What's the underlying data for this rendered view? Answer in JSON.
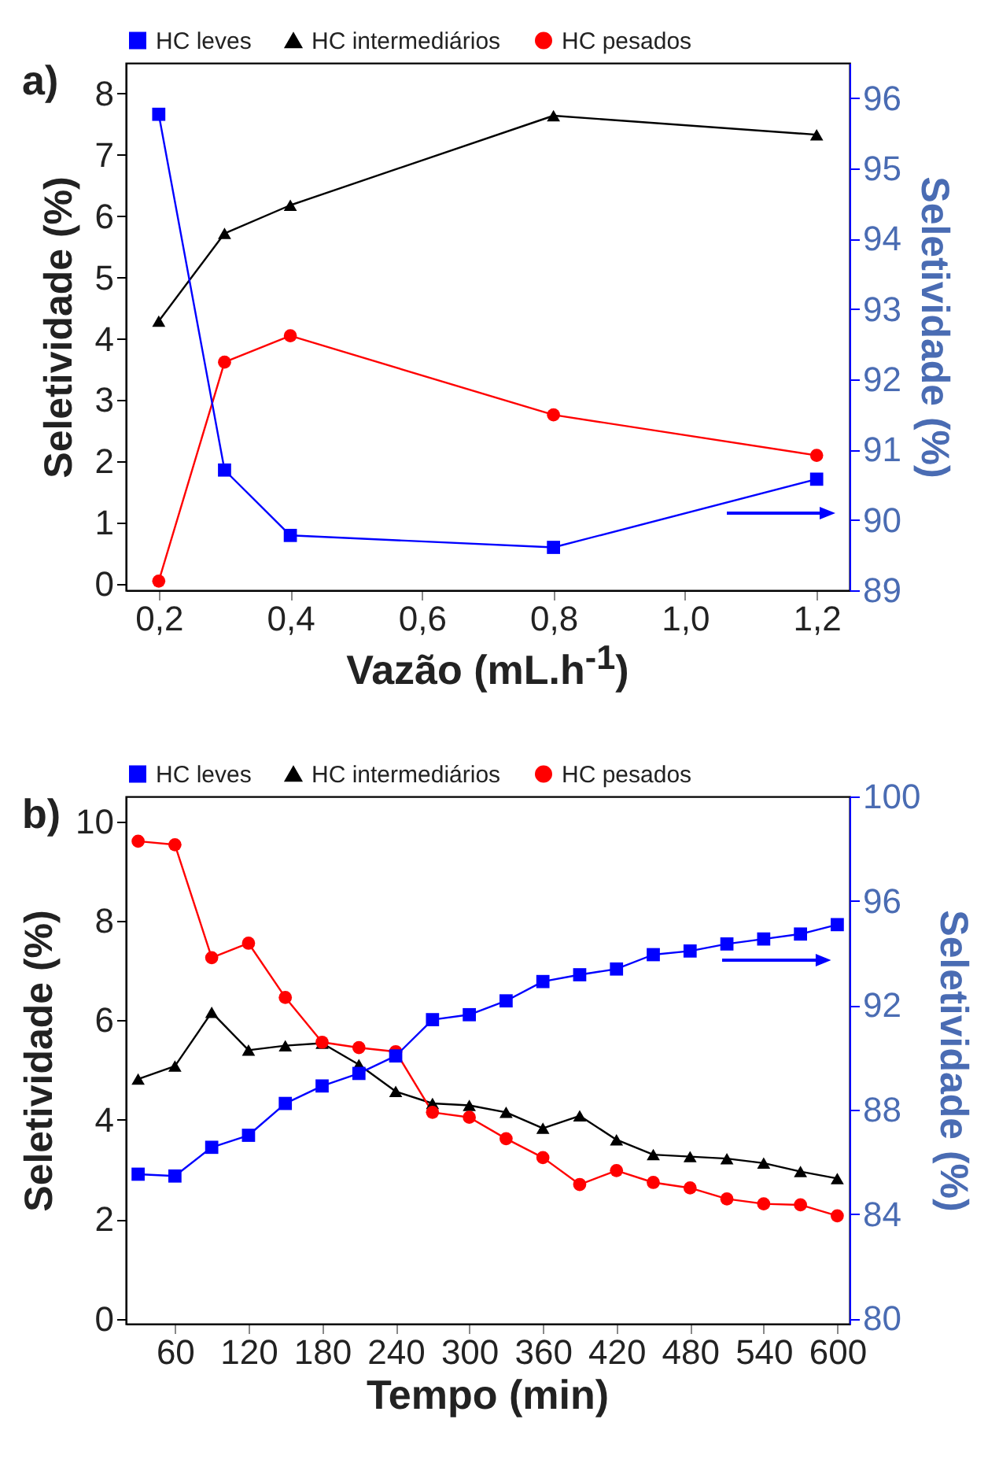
{
  "chart_data": [
    {
      "type": "line",
      "xlabel": "Vazão (mL.h$^{-1}$)",
      "ylabel": "Seletividade (%)",
      "y2label": "Seletividade (%)",
      "annotations": [
        "a)"
      ],
      "legend": "top",
      "x": [
        0.2,
        0.3,
        0.4,
        0.8,
        1.2
      ],
      "xlim": [
        0.15,
        1.25
      ],
      "xticks": [
        {
          "value": 0.2,
          "label": "0,2"
        },
        {
          "value": 0.4,
          "label": "0,4"
        },
        {
          "value": 0.6,
          "label": "0,6"
        },
        {
          "value": 0.8,
          "label": "0,8"
        },
        {
          "value": 1.0,
          "label": "1,0"
        },
        {
          "value": 1.2,
          "label": "1,2"
        }
      ],
      "ylim": [
        -0.1,
        8.5
      ],
      "yticks": [
        0,
        1,
        2,
        3,
        4,
        5,
        6,
        7,
        8
      ],
      "y2lim": [
        89,
        96.5
      ],
      "y2ticks": [
        89,
        90,
        91,
        92,
        93,
        94,
        95,
        96
      ],
      "series": [
        {
          "name": "HC leves",
          "color": "#0000ff",
          "marker": "square",
          "axis": "y2",
          "values": [
            95.77,
            90.71,
            89.78,
            89.61,
            90.58
          ]
        },
        {
          "name": "HC intermediários",
          "color": "#000000",
          "marker": "triangle",
          "values": [
            4.29,
            5.72,
            6.18,
            7.64,
            7.33
          ]
        },
        {
          "name": "HC pesados",
          "color": "#ff0000",
          "marker": "circle",
          "values": [
            0.05,
            3.62,
            4.05,
            2.76,
            2.1
          ]
        }
      ]
    },
    {
      "type": "line",
      "xlabel": "Tempo (min)",
      "ylabel": "Seletividade (%)",
      "y2label": "Seletividade (%)",
      "annotations": [
        "b)"
      ],
      "legend": "top",
      "x": [
        30,
        60,
        90,
        120,
        150,
        180,
        210,
        240,
        270,
        300,
        330,
        360,
        390,
        420,
        450,
        480,
        510,
        540,
        570,
        600
      ],
      "xlim": [
        20,
        610
      ],
      "xticks": [
        60,
        120,
        180,
        240,
        300,
        360,
        420,
        480,
        540,
        600
      ],
      "ylim": [
        -0.1,
        10.5
      ],
      "yticks": [
        0,
        2,
        4,
        6,
        8,
        10
      ],
      "y2lim": [
        79.8,
        100
      ],
      "y2ticks": [
        80,
        84,
        88,
        92,
        96,
        100
      ],
      "series": [
        {
          "name": "HC leves",
          "color": "#0000ff",
          "marker": "square",
          "axis": "y2",
          "values": [
            85.53,
            85.46,
            86.56,
            87.02,
            88.24,
            88.91,
            89.39,
            90.06,
            91.45,
            91.64,
            92.17,
            92.91,
            93.17,
            93.39,
            93.94,
            94.08,
            94.35,
            94.54,
            94.73,
            95.09
          ]
        },
        {
          "name": "HC intermediários",
          "color": "#000000",
          "marker": "triangle",
          "values": [
            4.82,
            5.08,
            6.16,
            5.4,
            5.49,
            5.54,
            5.11,
            4.57,
            4.33,
            4.29,
            4.15,
            3.83,
            4.08,
            3.6,
            3.3,
            3.26,
            3.22,
            3.13,
            2.96,
            2.82
          ]
        },
        {
          "name": "HC pesados",
          "color": "#ff0000",
          "marker": "circle",
          "values": [
            9.6,
            9.53,
            7.26,
            7.55,
            6.46,
            5.56,
            5.45,
            5.37,
            4.15,
            4.05,
            3.62,
            3.24,
            2.7,
            2.98,
            2.74,
            2.63,
            2.41,
            2.31,
            2.29,
            2.07
          ]
        }
      ]
    }
  ]
}
